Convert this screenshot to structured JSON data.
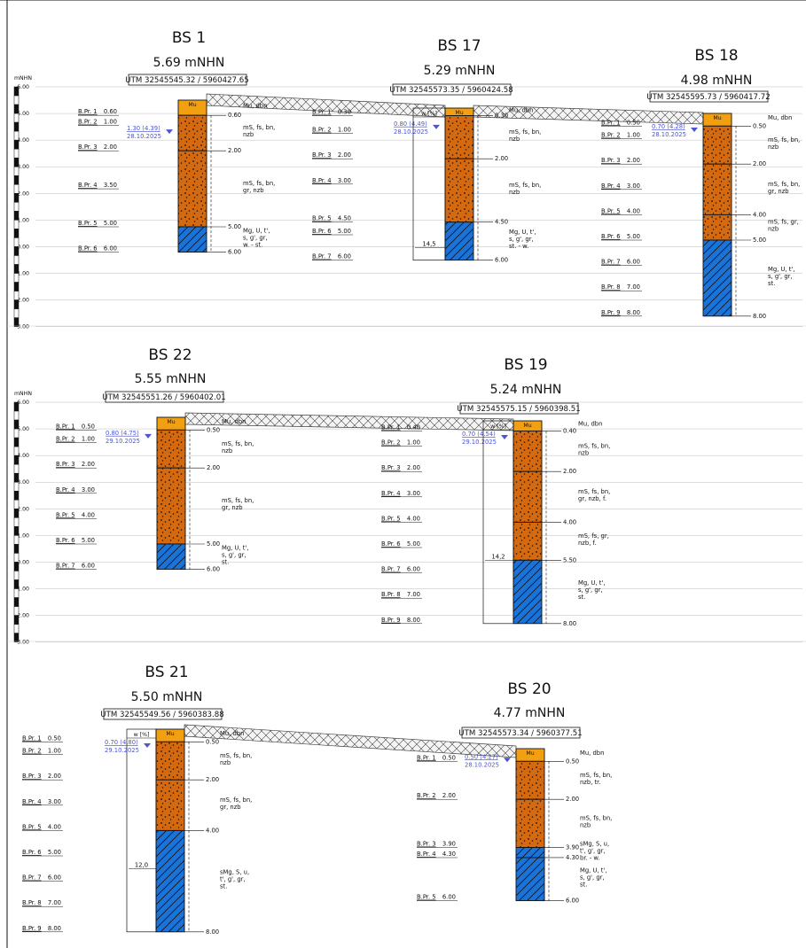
{
  "axis": {
    "unit": "mNHN",
    "ticks": [
      "6.00",
      "5.00",
      "4.00",
      "3.00",
      "2.00",
      "1.00",
      "0.00",
      "-1.00",
      "-2.00",
      "-3.00"
    ]
  },
  "colors": {
    "sand": "#d4690f",
    "mu": "#f2a012",
    "clay": "#1a73d9",
    "water": "#4b55d6",
    "line": "#111111"
  },
  "boreholes": [
    {
      "id": "BS 1",
      "elevation": "5.69 mNHN",
      "utm": "UTM 32545545.32 / 5960427.65",
      "water": {
        "text": "1.30 (4.39)",
        "date": "28.10.2025"
      },
      "moisture_label": "",
      "moisture_value": "",
      "layers": [
        {
          "type": "Mu",
          "bottom": 0.6,
          "bottom_label": "0.60",
          "desc": [
            "Mu, dbn"
          ]
        },
        {
          "type": "sand",
          "bottom": 2.0,
          "bottom_label": "2.00",
          "desc": [
            "mS, fs, bn,",
            "nzb"
          ]
        },
        {
          "type": "sand",
          "bottom": 5.0,
          "bottom_label": "5.00",
          "desc": [
            "mS, fs, bn,",
            "gr, nzb"
          ]
        },
        {
          "type": "clay",
          "bottom": 6.0,
          "bottom_label": "6.00",
          "desc": [
            "Mg, U, t',",
            "s, g', gr,",
            "w. - st."
          ]
        }
      ],
      "samples": [
        {
          "label": "B.Pr. 1",
          "depth": "0.60"
        },
        {
          "label": "B.Pr. 2",
          "depth": "1.00"
        },
        {
          "label": "B.Pr. 3",
          "depth": "2.00"
        },
        {
          "label": "B.Pr. 4",
          "depth": "3.50"
        },
        {
          "label": "B.Pr. 5",
          "depth": "5.00"
        },
        {
          "label": "B.Pr. 6",
          "depth": "6.00"
        }
      ]
    },
    {
      "id": "BS 17",
      "elevation": "5.29 mNHN",
      "utm": "UTM 32545573.35 / 5960424.58",
      "water": {
        "text": "0.80 (4.49)",
        "date": "28.10.2025"
      },
      "moisture_label": "w [%]",
      "moisture_value": "14,5",
      "layers": [
        {
          "type": "Mu",
          "bottom": 0.3,
          "bottom_label": "0.30",
          "desc": [
            "Mu, dbn"
          ]
        },
        {
          "type": "sand",
          "bottom": 2.0,
          "bottom_label": "2.00",
          "desc": [
            "mS, fs, bn,",
            "nzb"
          ]
        },
        {
          "type": "sand",
          "bottom": 4.5,
          "bottom_label": "4.50",
          "desc": [
            "mS, fs, bn,",
            "nzb"
          ]
        },
        {
          "type": "clay",
          "bottom": 6.0,
          "bottom_label": "6.00",
          "desc": [
            "Mg, U, t',",
            "s, g', gr,",
            "st. - w."
          ]
        }
      ],
      "samples": [
        {
          "label": "B.Pr. 1",
          "depth": "0.30"
        },
        {
          "label": "B.Pr. 2",
          "depth": "1.00"
        },
        {
          "label": "B.Pr. 3",
          "depth": "2.00"
        },
        {
          "label": "B.Pr. 4",
          "depth": "3.00"
        },
        {
          "label": "B.Pr. 5",
          "depth": "4.50"
        },
        {
          "label": "B.Pr. 6",
          "depth": "5.00"
        },
        {
          "label": "B.Pr. 7",
          "depth": "6.00"
        }
      ]
    },
    {
      "id": "BS 18",
      "elevation": "4.98 mNHN",
      "utm": "UTM 32545595.73 / 5960417.72",
      "water": {
        "text": "0.70 (4.28)",
        "date": "28.10.2025"
      },
      "moisture_label": "",
      "moisture_value": "",
      "layers": [
        {
          "type": "Mu",
          "bottom": 0.5,
          "bottom_label": "0.50",
          "desc": [
            "Mu, dbn"
          ]
        },
        {
          "type": "sand",
          "bottom": 2.0,
          "bottom_label": "2.00",
          "desc": [
            "mS, fs, bn,",
            "nzb"
          ]
        },
        {
          "type": "sand",
          "bottom": 4.0,
          "bottom_label": "4.00",
          "desc": [
            "mS, fs, bn,",
            "gr, nzb"
          ]
        },
        {
          "type": "sand",
          "bottom": 5.0,
          "bottom_label": "5.00",
          "desc": [
            "mS, fs, gr,",
            "nzb"
          ]
        },
        {
          "type": "clay",
          "bottom": 8.0,
          "bottom_label": "8.00",
          "desc": [
            "Mg, U, t',",
            "s, g', gr,",
            "st."
          ]
        }
      ],
      "samples": [
        {
          "label": "B.Pr. 1",
          "depth": "0.50"
        },
        {
          "label": "B.Pr. 2",
          "depth": "1.00"
        },
        {
          "label": "B.Pr. 3",
          "depth": "2.00"
        },
        {
          "label": "B.Pr. 4",
          "depth": "3.00"
        },
        {
          "label": "B.Pr. 5",
          "depth": "4.00"
        },
        {
          "label": "B.Pr. 6",
          "depth": "5.00"
        },
        {
          "label": "B.Pr. 7",
          "depth": "6.00"
        },
        {
          "label": "B.Pr. 8",
          "depth": "7.00"
        },
        {
          "label": "B.Pr. 9",
          "depth": "8.00"
        }
      ]
    },
    {
      "id": "BS 22",
      "elevation": "5.55 mNHN",
      "utm": "UTM 32545551.26 / 5960402.01",
      "water": {
        "text": "0.80 (4.75)",
        "date": "29.10.2025"
      },
      "moisture_label": "",
      "moisture_value": "",
      "layers": [
        {
          "type": "Mu",
          "bottom": 0.5,
          "bottom_label": "0.50",
          "desc": [
            "Mu, dbn"
          ]
        },
        {
          "type": "sand",
          "bottom": 2.0,
          "bottom_label": "2.00",
          "desc": [
            "mS, fs, bn,",
            "nzb"
          ]
        },
        {
          "type": "sand",
          "bottom": 5.0,
          "bottom_label": "5.00",
          "desc": [
            "mS, fs, bn,",
            "gr, nzb"
          ]
        },
        {
          "type": "clay",
          "bottom": 6.0,
          "bottom_label": "6.00",
          "desc": [
            "Mg, U, t',",
            "s, g', gr,",
            "st."
          ]
        }
      ],
      "samples": [
        {
          "label": "B.Pr. 1",
          "depth": "0.50"
        },
        {
          "label": "B.Pr. 2",
          "depth": "1.00"
        },
        {
          "label": "B.Pr. 3",
          "depth": "2.00"
        },
        {
          "label": "B.Pr. 4",
          "depth": "3.00"
        },
        {
          "label": "B.Pr. 5",
          "depth": "4.00"
        },
        {
          "label": "B.Pr. 6",
          "depth": "5.00"
        },
        {
          "label": "B.Pr. 7",
          "depth": "6.00"
        }
      ]
    },
    {
      "id": "BS 19",
      "elevation": "5.24 mNHN",
      "utm": "UTM 32545575.15 / 5960398.51",
      "water": {
        "text": "0.70 (4.54)",
        "date": "29.10.2025"
      },
      "moisture_label": "w [%]",
      "moisture_value": "14,2",
      "layers": [
        {
          "type": "Mu",
          "bottom": 0.4,
          "bottom_label": "0.40",
          "desc": [
            "Mu, dbn"
          ]
        },
        {
          "type": "sand",
          "bottom": 2.0,
          "bottom_label": "2.00",
          "desc": [
            "mS, fs, bn,",
            "nzb"
          ]
        },
        {
          "type": "sand",
          "bottom": 4.0,
          "bottom_label": "4.00",
          "desc": [
            "mS, fs, bn,",
            "gr, nzb, f."
          ]
        },
        {
          "type": "sand",
          "bottom": 5.5,
          "bottom_label": "5.50",
          "desc": [
            "mS, fs, gr,",
            "nzb, f."
          ]
        },
        {
          "type": "clay",
          "bottom": 8.0,
          "bottom_label": "8.00",
          "desc": [
            "Mg, U, t',",
            "s, g', gr,",
            "st."
          ]
        }
      ],
      "samples": [
        {
          "label": "B.Pr. 1",
          "depth": "0.40"
        },
        {
          "label": "B.Pr. 2",
          "depth": "1.00"
        },
        {
          "label": "B.Pr. 3",
          "depth": "2.00"
        },
        {
          "label": "B.Pr. 4",
          "depth": "3.00"
        },
        {
          "label": "B.Pr. 5",
          "depth": "4.00"
        },
        {
          "label": "B.Pr. 6",
          "depth": "5.00"
        },
        {
          "label": "B.Pr. 7",
          "depth": "6.00"
        },
        {
          "label": "B.Pr. 8",
          "depth": "7.00"
        },
        {
          "label": "B.Pr. 9",
          "depth": "8.00"
        }
      ]
    },
    {
      "id": "BS 21",
      "elevation": "5.50 mNHN",
      "utm": "UTM 32545549.56 / 5960383.88",
      "water": {
        "text": "0.70 (4.80)",
        "date": "29.10.2025"
      },
      "moisture_label": "w [%]",
      "moisture_value": "12,0",
      "layers": [
        {
          "type": "Mu",
          "bottom": 0.5,
          "bottom_label": "0.50",
          "desc": [
            "Mu, dbn"
          ]
        },
        {
          "type": "sand",
          "bottom": 2.0,
          "bottom_label": "2.00",
          "desc": [
            "mS, fs, bn,",
            "nzb"
          ]
        },
        {
          "type": "sand",
          "bottom": 4.0,
          "bottom_label": "4.00",
          "desc": [
            "mS, fs, bn,",
            "gr, nzb"
          ]
        },
        {
          "type": "clay",
          "bottom": 8.0,
          "bottom_label": "8.00",
          "desc": [
            "sMg, S, u,",
            "t', g', gr,",
            "st."
          ]
        }
      ],
      "samples": [
        {
          "label": "B.Pr. 1",
          "depth": "0.50"
        },
        {
          "label": "B.Pr. 2",
          "depth": "1.00"
        },
        {
          "label": "B.Pr. 3",
          "depth": "2.00"
        },
        {
          "label": "B.Pr. 4",
          "depth": "3.00"
        },
        {
          "label": "B.Pr. 5",
          "depth": "4.00"
        },
        {
          "label": "B.Pr. 6",
          "depth": "5.00"
        },
        {
          "label": "B.Pr. 7",
          "depth": "6.00"
        },
        {
          "label": "B.Pr. 8",
          "depth": "7.00"
        },
        {
          "label": "B.Pr. 9",
          "depth": "8.00"
        }
      ]
    },
    {
      "id": "BS 20",
      "elevation": "4.77 mNHN",
      "utm": "UTM 32545573.34 / 5960377.51",
      "water": {
        "text": "0.50 (4.27)",
        "date": "28.10.2025"
      },
      "moisture_label": "",
      "moisture_value": "",
      "layers": [
        {
          "type": "Mu",
          "bottom": 0.5,
          "bottom_label": "0.50",
          "desc": [
            "Mu, dbn"
          ]
        },
        {
          "type": "sand",
          "bottom": 2.0,
          "bottom_label": "2.00",
          "desc": [
            "mS, fs, bn,",
            "nzb, tr."
          ]
        },
        {
          "type": "sand",
          "bottom": 3.9,
          "bottom_label": "3.90",
          "desc": [
            "mS, fs, bn,",
            "nzb"
          ]
        },
        {
          "type": "clay",
          "bottom": 4.3,
          "bottom_label": "4.30",
          "desc": [
            "sMg, S, u,",
            "t', g', gr,",
            "br. - w."
          ]
        },
        {
          "type": "clay",
          "bottom": 6.0,
          "bottom_label": "6.00",
          "desc": [
            "Mg, U, t',",
            "s, g', gr,",
            "st."
          ]
        }
      ],
      "samples": [
        {
          "label": "B.Pr. 1",
          "depth": "0.50"
        },
        {
          "label": "B.Pr. 2",
          "depth": "2.00"
        },
        {
          "label": "B.Pr. 3",
          "depth": "3.90"
        },
        {
          "label": "B.Pr. 4",
          "depth": "4.30"
        },
        {
          "label": "B.Pr. 5",
          "depth": "6.00"
        }
      ]
    }
  ]
}
